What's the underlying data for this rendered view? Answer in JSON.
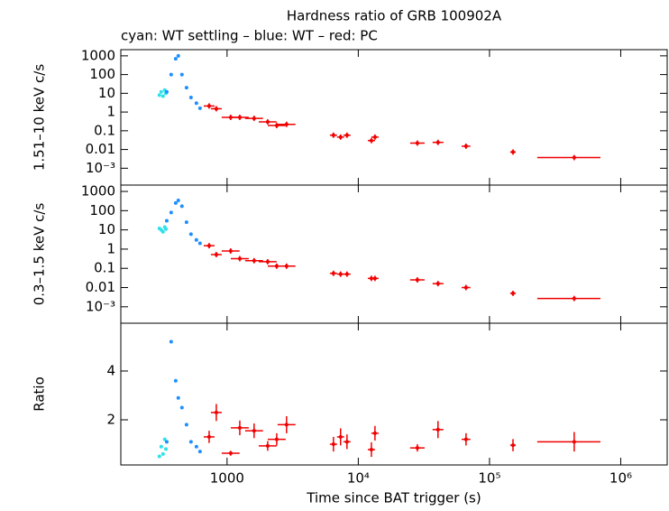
{
  "chart_data": [
    {
      "type": "scatter",
      "title": "Hardness ratio of GRB 100902A",
      "subtitle": "cyan: WT settling – blue: WT – red: PC",
      "ylabel": "1.51–10 keV c/s",
      "ylog": true,
      "ylim": [
        0.000126,
        2140
      ],
      "yticks": [
        1000,
        100,
        10,
        1,
        0.1,
        0.01,
        {
          "value": 0.001,
          "label": "10⁻³"
        }
      ],
      "series": [
        {
          "name": "WT settling",
          "color": "#2ee0ea",
          "x": [
            305,
            315,
            325,
            335,
            342
          ],
          "values": [
            8,
            12,
            7,
            15,
            10
          ]
        },
        {
          "name": "WT",
          "color": "#1e8fff",
          "x": [
            347,
            375,
            406,
            425,
            453,
            491,
            531,
            584,
            622
          ],
          "values": [
            12,
            100,
            700,
            1000,
            100,
            20,
            6,
            3,
            1.6
          ]
        },
        {
          "name": "PC",
          "color": "#f00000",
          "x": [
            730,
            828,
            1065,
            1250,
            1607,
            2040,
            2390,
            2840,
            6470,
            7330,
            8200,
            12590,
            13400,
            28200,
            40500,
            66200,
            151000,
            442000
          ],
          "xmin": [
            664,
            753,
            910,
            1068,
            1373,
            1744,
            2043,
            2427,
            6075,
            6883,
            7700,
            11822,
            12582,
            24846,
            36818,
            61296,
            143810,
            231000
          ],
          "xmax": [
            803,
            911,
            1246,
            1463,
            1880,
            2387,
            2796,
            3323,
            6891,
            7806,
            8733,
            13408,
            14271,
            32007,
            44550,
            71496,
            158550,
            700000
          ],
          "values": [
            2.1,
            1.5,
            0.52,
            0.52,
            0.46,
            0.3,
            0.19,
            0.22,
            0.058,
            0.046,
            0.058,
            0.03,
            0.046,
            0.022,
            0.024,
            0.015,
            0.0073,
            0.0037
          ]
        }
      ]
    },
    {
      "type": "scatter",
      "ylabel": "0.3–1.5 keV c/s",
      "ylog": true,
      "ylim": [
        0.00014,
        2140
      ],
      "yticks": [
        1000,
        100,
        10,
        1,
        0.1,
        0.01,
        {
          "value": 0.001,
          "label": "10⁻³"
        }
      ],
      "series": [
        {
          "name": "WT settling",
          "color": "#2ee0ea",
          "x": [
            305,
            315,
            325,
            335,
            342
          ],
          "values": [
            12,
            10,
            8,
            14,
            11
          ]
        },
        {
          "name": "WT",
          "color": "#1e8fff",
          "x": [
            347,
            375,
            406,
            425,
            453,
            491,
            531,
            584,
            622
          ],
          "values": [
            30,
            80,
            250,
            340,
            170,
            25,
            6,
            3,
            2
          ]
        },
        {
          "name": "PC",
          "color": "#f00000",
          "x": [
            730,
            828,
            1065,
            1250,
            1607,
            2040,
            2390,
            2840,
            6470,
            7330,
            8200,
            12590,
            13400,
            28200,
            40500,
            66200,
            151000,
            442000
          ],
          "xmin": [
            664,
            753,
            910,
            1068,
            1373,
            1744,
            2043,
            2427,
            6075,
            6883,
            7700,
            11822,
            12582,
            24846,
            36818,
            61296,
            143810,
            231000
          ],
          "xmax": [
            803,
            911,
            1246,
            1463,
            1880,
            2387,
            2796,
            3323,
            6891,
            7806,
            8733,
            13408,
            14271,
            32007,
            44550,
            71496,
            158550,
            700000
          ],
          "values": [
            1.5,
            0.52,
            0.8,
            0.32,
            0.25,
            0.22,
            0.13,
            0.13,
            0.055,
            0.05,
            0.05,
            0.03,
            0.03,
            0.025,
            0.016,
            0.01,
            0.005,
            0.0027
          ]
        }
      ]
    },
    {
      "type": "scatter",
      "ylabel": "Ratio",
      "xlabel": "Time since BAT trigger (s)",
      "ylog": false,
      "ylim": [
        0.15,
        5.96
      ],
      "yticks": [
        2,
        4
      ],
      "xlog": true,
      "xlim": [
        155,
        2260000
      ],
      "xticks": [
        1000,
        {
          "value": 10000,
          "label": "10⁴"
        },
        {
          "value": 100000,
          "label": "10⁵"
        },
        {
          "value": 1000000,
          "label": "10⁶"
        }
      ],
      "series": [
        {
          "name": "WT settling",
          "color": "#2ee0ea",
          "x": [
            305,
            315,
            325,
            335,
            342
          ],
          "values": [
            0.5,
            0.9,
            0.6,
            1.2,
            0.8
          ]
        },
        {
          "name": "WT",
          "color": "#1e8fff",
          "x": [
            347,
            375,
            406,
            425,
            453,
            491,
            531,
            584,
            622
          ],
          "values": [
            1.1,
            5.2,
            3.6,
            2.9,
            2.5,
            1.8,
            1.1,
            0.9,
            0.7
          ]
        },
        {
          "name": "PC",
          "color": "#f00000",
          "x": [
            730,
            828,
            1065,
            1250,
            1607,
            2040,
            2390,
            2840,
            6470,
            7330,
            8200,
            12590,
            13400,
            28200,
            40500,
            66200,
            151000,
            442000
          ],
          "xmin": [
            664,
            753,
            910,
            1068,
            1373,
            1744,
            2043,
            2427,
            6075,
            6883,
            7700,
            11822,
            12582,
            24846,
            36818,
            61296,
            143810,
            231000
          ],
          "xmax": [
            803,
            911,
            1246,
            1463,
            1880,
            2387,
            2796,
            3323,
            6891,
            7806,
            8733,
            13408,
            14271,
            32007,
            44550,
            71496,
            158550,
            700000
          ],
          "values": [
            1.3,
            2.3,
            0.63,
            1.67,
            1.55,
            0.93,
            1.2,
            1.8,
            1.0,
            1.3,
            1.1,
            0.78,
            1.45,
            0.85,
            1.6,
            1.2,
            0.96,
            1.1
          ],
          "yerr": [
            0.25,
            0.35,
            0.1,
            0.3,
            0.3,
            0.2,
            0.25,
            0.35,
            0.3,
            0.35,
            0.3,
            0.3,
            0.3,
            0.15,
            0.35,
            0.25,
            0.25,
            0.4
          ]
        }
      ]
    }
  ]
}
